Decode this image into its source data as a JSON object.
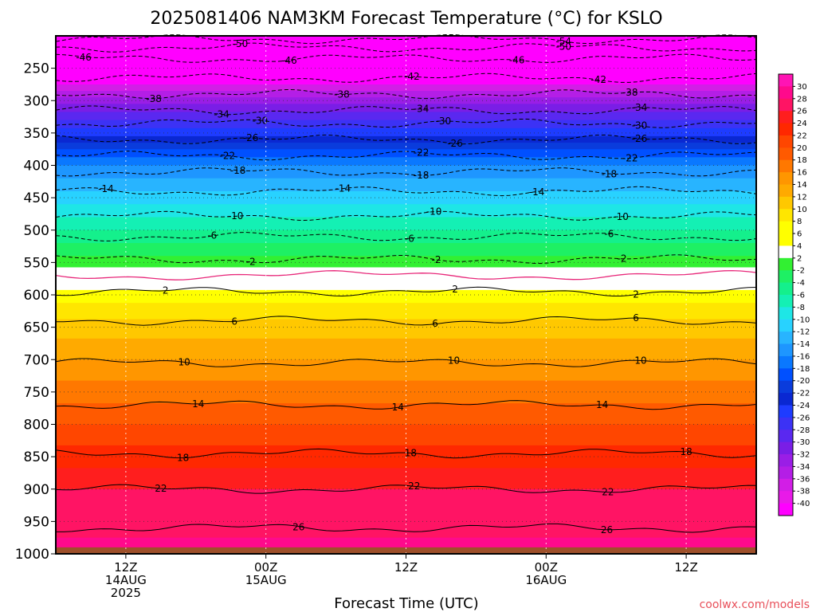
{
  "title": "2025081406 NAM3KM Forecast Temperature (°C) for KSLO",
  "xlabel": "Forecast Time (UTC)",
  "credit": "coolwx.com/models",
  "colors": {
    "palette": [
      "#ff00ff",
      "#e81ae8",
      "#d21ee6",
      "#b41ee6",
      "#9a1ee6",
      "#7a1ee6",
      "#5a28f0",
      "#3c32f5",
      "#1e3cff",
      "#0a28d2",
      "#0050ff",
      "#0a78ff",
      "#1e96ff",
      "#28b4ff",
      "#28d2ff",
      "#1ee6e6",
      "#14f0b4",
      "#14f08c",
      "#1ef064",
      "#32f032",
      "#ffffff",
      "#ffff00",
      "#fff000",
      "#ffd200",
      "#ffb400",
      "#ff9600",
      "#ff7800",
      "#ff5a00",
      "#ff2800",
      "#ff1e1e",
      "#ff1464",
      "#ff0a8c",
      "#ff1ea0",
      "#ff14b4"
    ],
    "ground": "#9e502a",
    "zero_line": "#e8287a"
  },
  "chart_data": {
    "type": "heatmap",
    "title": "2025081406 NAM3KM Forecast Temperature (°C) for KSLO",
    "xlabel": "Forecast Time (UTC)",
    "ylabel": "",
    "y_axis": "pressure (hPa), inverted",
    "ylim": [
      1000,
      200
    ],
    "y_ticks": [
      250,
      300,
      350,
      400,
      450,
      500,
      550,
      600,
      650,
      700,
      750,
      800,
      850,
      900,
      950,
      1000
    ],
    "x_ticks": [
      {
        "lines": [
          "12Z",
          "14AUG",
          "2025"
        ],
        "t": 6
      },
      {
        "lines": [
          "00Z",
          "15AUG"
        ],
        "t": 18
      },
      {
        "lines": [
          "12Z"
        ],
        "t": 30
      },
      {
        "lines": [
          "00Z",
          "16AUG"
        ],
        "t": 42
      },
      {
        "lines": [
          "12Z"
        ],
        "t": 54
      }
    ],
    "xlim": [
      0,
      60
    ],
    "colorbar": {
      "labels": [
        30,
        28,
        26,
        24,
        22,
        20,
        18,
        16,
        14,
        12,
        10,
        8,
        6,
        4,
        2,
        -2,
        -4,
        -6,
        -8,
        -10,
        -12,
        -14,
        -16,
        -18,
        -20,
        -22,
        -24,
        -26,
        -28,
        -30,
        -32,
        -34,
        -36,
        -38,
        -40
      ]
    },
    "temperature_profile": [
      {
        "p": 200,
        "t": -56
      },
      {
        "p": 210,
        "t": -52
      },
      {
        "p": 230,
        "t": -47
      },
      {
        "p": 250,
        "t": -44
      },
      {
        "p": 275,
        "t": -40
      },
      {
        "p": 300,
        "t": -35
      },
      {
        "p": 325,
        "t": -31
      },
      {
        "p": 350,
        "t": -27
      },
      {
        "p": 375,
        "t": -22
      },
      {
        "p": 400,
        "t": -18
      },
      {
        "p": 450,
        "t": -13
      },
      {
        "p": 500,
        "t": -8
      },
      {
        "p": 550,
        "t": -3
      },
      {
        "p": 575,
        "t": 0
      },
      {
        "p": 600,
        "t": 3
      },
      {
        "p": 650,
        "t": 7
      },
      {
        "p": 700,
        "t": 10
      },
      {
        "p": 750,
        "t": 13
      },
      {
        "p": 800,
        "t": 16
      },
      {
        "p": 850,
        "t": 19
      },
      {
        "p": 900,
        "t": 22
      },
      {
        "p": 950,
        "t": 25
      },
      {
        "p": 1000,
        "t": 27
      }
    ],
    "contours": [
      {
        "value": -54,
        "p": 205,
        "dashed": true,
        "labels": [
          [
            43.5,
            "-54"
          ]
        ]
      },
      {
        "value": -50,
        "p": 218,
        "dashed": true,
        "labels": [
          [
            15.8,
            "-50"
          ],
          [
            43.5,
            "-50"
          ]
        ]
      },
      {
        "value": -46,
        "p": 235,
        "dashed": true,
        "labels": [
          [
            2.4,
            "-46"
          ],
          [
            20,
            "-46"
          ],
          [
            39.5,
            "-46"
          ]
        ]
      },
      {
        "value": -42,
        "p": 265,
        "dashed": true,
        "labels": [
          [
            30.5,
            "-42"
          ],
          [
            46.5,
            "-42"
          ]
        ]
      },
      {
        "value": -38,
        "p": 290,
        "dashed": true,
        "labels": [
          [
            8.4,
            "-38"
          ],
          [
            24.5,
            "-38"
          ],
          [
            49.2,
            "-38"
          ]
        ]
      },
      {
        "value": -34,
        "p": 315,
        "dashed": true,
        "labels": [
          [
            14.2,
            "-34"
          ],
          [
            31.3,
            "-34"
          ],
          [
            50,
            "-34"
          ]
        ]
      },
      {
        "value": -30,
        "p": 335,
        "dashed": true,
        "labels": [
          [
            17.5,
            "-30"
          ],
          [
            33.2,
            "-30"
          ],
          [
            50,
            "-30"
          ]
        ]
      },
      {
        "value": -26,
        "p": 360,
        "dashed": true,
        "labels": [
          [
            16.7,
            "-26"
          ],
          [
            34.2,
            "-26"
          ],
          [
            50,
            "-26"
          ]
        ]
      },
      {
        "value": -22,
        "p": 385,
        "dashed": true,
        "labels": [
          [
            14.7,
            "-22"
          ],
          [
            31.3,
            "-22"
          ],
          [
            49.2,
            "-22"
          ]
        ]
      },
      {
        "value": -18,
        "p": 410,
        "dashed": true,
        "labels": [
          [
            15.6,
            "-18"
          ],
          [
            31.3,
            "-18"
          ],
          [
            47.4,
            "-18"
          ]
        ]
      },
      {
        "value": -14,
        "p": 440,
        "dashed": true,
        "labels": [
          [
            4.3,
            "-14"
          ],
          [
            24.6,
            "-14"
          ],
          [
            41.2,
            "-14"
          ]
        ]
      },
      {
        "value": -10,
        "p": 478,
        "dashed": true,
        "labels": [
          [
            15.4,
            "-10"
          ],
          [
            32.4,
            "-10"
          ],
          [
            48.4,
            "-10"
          ]
        ]
      },
      {
        "value": -6,
        "p": 510,
        "dashed": true,
        "labels": [
          [
            13.4,
            "-6"
          ],
          [
            30.3,
            "-6"
          ],
          [
            47.4,
            "-6"
          ]
        ]
      },
      {
        "value": -2,
        "p": 545,
        "dashed": true,
        "labels": [
          [
            16.7,
            "-2"
          ],
          [
            32.6,
            "-2"
          ],
          [
            48.5,
            "-2"
          ]
        ]
      },
      {
        "value": 2,
        "p": 595,
        "dashed": false,
        "labels": [
          [
            9.4,
            "2"
          ],
          [
            34.2,
            "2"
          ],
          [
            49.7,
            "2"
          ]
        ]
      },
      {
        "value": 6,
        "p": 640,
        "dashed": false,
        "labels": [
          [
            15.3,
            "6"
          ],
          [
            32.5,
            "6"
          ],
          [
            49.7,
            "6"
          ]
        ]
      },
      {
        "value": 10,
        "p": 705,
        "dashed": false,
        "labels": [
          [
            11,
            "10"
          ],
          [
            34.1,
            "10"
          ],
          [
            50.1,
            "10"
          ]
        ]
      },
      {
        "value": 14,
        "p": 770,
        "dashed": false,
        "labels": [
          [
            12.2,
            "14"
          ],
          [
            29.3,
            "14"
          ],
          [
            46.8,
            "14"
          ]
        ]
      },
      {
        "value": 18,
        "p": 845,
        "dashed": false,
        "labels": [
          [
            10.9,
            "18"
          ],
          [
            30.4,
            "18"
          ],
          [
            54,
            "18"
          ]
        ]
      },
      {
        "value": 22,
        "p": 900,
        "dashed": false,
        "labels": [
          [
            9,
            "22"
          ],
          [
            30.7,
            "22"
          ],
          [
            47.3,
            "22"
          ]
        ]
      },
      {
        "value": 26,
        "p": 960,
        "dashed": false,
        "labels": [
          [
            20.8,
            "26"
          ],
          [
            47.2,
            "26"
          ]
        ]
      }
    ],
    "zero_isotherm": {
      "value": 0,
      "p": 570
    },
    "grid": true
  }
}
